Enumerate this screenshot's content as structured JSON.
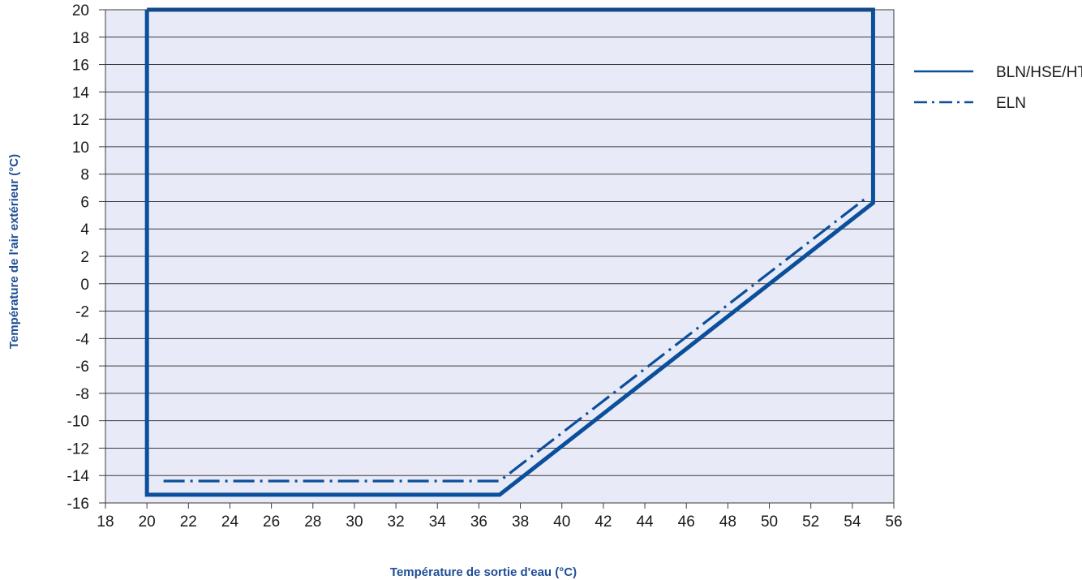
{
  "chart_data": {
    "type": "line",
    "title": "",
    "xlabel": "Température de sortie d'eau (°C)",
    "ylabel": "Température de l'air extérieur (°C)",
    "xlim": [
      18,
      56
    ],
    "ylim": [
      -16,
      20
    ],
    "x_ticks": [
      18,
      20,
      22,
      24,
      26,
      28,
      30,
      32,
      34,
      36,
      38,
      40,
      42,
      44,
      46,
      48,
      50,
      52,
      54,
      56
    ],
    "y_ticks": [
      20,
      18,
      16,
      14,
      12,
      10,
      8,
      6,
      4,
      2,
      0,
      -2,
      -4,
      -6,
      -8,
      -10,
      -12,
      -14,
      -16
    ],
    "grid": "horizontal",
    "legend_position": "right",
    "series": [
      {
        "name": "BLN/HSE/HT",
        "style": "solid",
        "x": [
          20,
          55,
          55,
          37,
          20,
          20
        ],
        "y": [
          20,
          20,
          5.9,
          -15.4,
          -15.4,
          20
        ]
      },
      {
        "name": "ELN",
        "style": "dash-dot",
        "x": [
          20.8,
          37,
          54.7
        ],
        "y": [
          -14.4,
          -14.4,
          6.3
        ]
      }
    ]
  },
  "colors": {
    "line": "#0b4f9c",
    "plot_background": "#e8ebf7",
    "gridline": "#3a3a3a",
    "axis_title": "#1f4e96"
  }
}
